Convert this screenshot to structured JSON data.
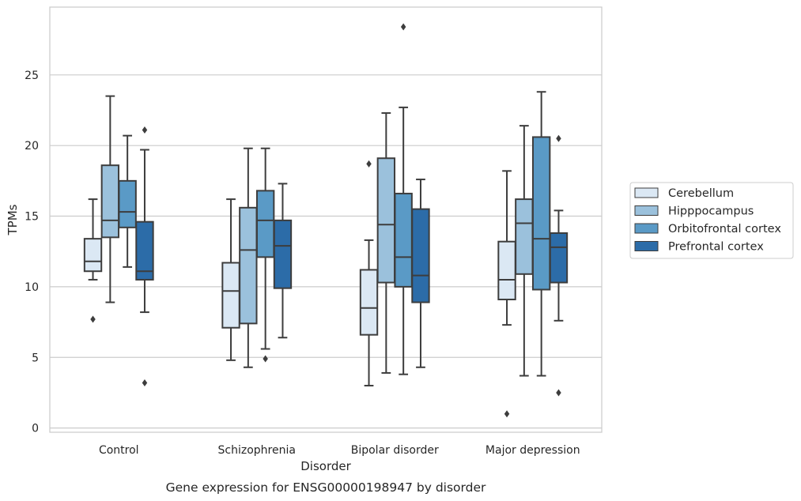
{
  "chart_data": {
    "type": "box",
    "title": "",
    "caption": "Gene expression for ENSG00000198947 by disorder",
    "xlabel": "Disorder",
    "ylabel": "TPMs",
    "ylim": [
      -0.3,
      29.8
    ],
    "yticks": [
      0,
      5,
      10,
      15,
      20,
      25
    ],
    "grid": "horizontal",
    "legend_position": "right",
    "categories": [
      "Control",
      "Schizophrenia",
      "Bipolar disorder",
      "Major depression"
    ],
    "series": [
      {
        "name": "Cerebellum",
        "color": "#dbe8f4",
        "boxes": [
          {
            "whislo": 10.5,
            "q1": 11.1,
            "med": 11.8,
            "q3": 13.4,
            "whishi": 16.2,
            "fliers": [
              7.7
            ]
          },
          {
            "whislo": 4.8,
            "q1": 7.1,
            "med": 9.7,
            "q3": 11.7,
            "whishi": 16.2,
            "fliers": []
          },
          {
            "whislo": 3.0,
            "q1": 6.6,
            "med": 8.5,
            "q3": 11.2,
            "whishi": 13.3,
            "fliers": [
              18.7
            ]
          },
          {
            "whislo": 7.3,
            "q1": 9.1,
            "med": 10.5,
            "q3": 13.2,
            "whishi": 18.2,
            "fliers": [
              1.0
            ]
          }
        ]
      },
      {
        "name": "Hipppocampus",
        "color": "#9bc1dc",
        "boxes": [
          {
            "whislo": 8.9,
            "q1": 13.5,
            "med": 14.7,
            "q3": 18.6,
            "whishi": 23.5,
            "fliers": []
          },
          {
            "whislo": 4.3,
            "q1": 7.4,
            "med": 12.6,
            "q3": 15.6,
            "whishi": 19.8,
            "fliers": []
          },
          {
            "whislo": 3.9,
            "q1": 10.3,
            "med": 14.4,
            "q3": 19.1,
            "whishi": 22.3,
            "fliers": []
          },
          {
            "whislo": 3.7,
            "q1": 10.9,
            "med": 14.5,
            "q3": 16.2,
            "whishi": 21.4,
            "fliers": []
          }
        ]
      },
      {
        "name": "Orbitofrontal cortex",
        "color": "#5a9ac6",
        "boxes": [
          {
            "whislo": 11.4,
            "q1": 14.2,
            "med": 15.3,
            "q3": 17.5,
            "whishi": 20.7,
            "fliers": []
          },
          {
            "whislo": 5.6,
            "q1": 12.1,
            "med": 14.7,
            "q3": 16.8,
            "whishi": 19.8,
            "fliers": [
              4.9
            ]
          },
          {
            "whislo": 3.8,
            "q1": 10.0,
            "med": 12.1,
            "q3": 16.6,
            "whishi": 22.7,
            "fliers": [
              28.4
            ]
          },
          {
            "whislo": 3.7,
            "q1": 9.8,
            "med": 13.4,
            "q3": 20.6,
            "whishi": 23.8,
            "fliers": []
          }
        ]
      },
      {
        "name": "Prefrontal cortex",
        "color": "#2c6ca8",
        "boxes": [
          {
            "whislo": 8.2,
            "q1": 10.5,
            "med": 11.1,
            "q3": 14.6,
            "whishi": 19.7,
            "fliers": [
              3.2,
              21.1
            ]
          },
          {
            "whislo": 6.4,
            "q1": 9.9,
            "med": 12.9,
            "q3": 14.7,
            "whishi": 17.3,
            "fliers": []
          },
          {
            "whislo": 4.3,
            "q1": 8.9,
            "med": 10.8,
            "q3": 15.5,
            "whishi": 17.6,
            "fliers": []
          },
          {
            "whislo": 7.6,
            "q1": 10.3,
            "med": 12.8,
            "q3": 13.8,
            "whishi": 15.4,
            "fliers": [
              2.5,
              20.5
            ]
          }
        ]
      }
    ]
  }
}
